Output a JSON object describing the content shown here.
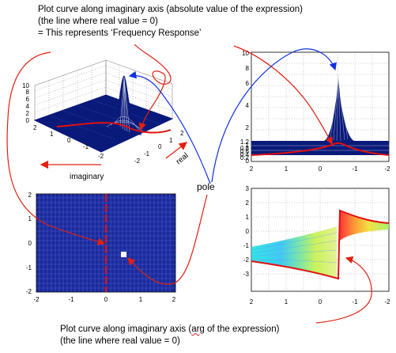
{
  "annotations": {
    "top_line1": "Plot curve along imaginary axis (absolute value of the expression)",
    "top_line2": "(the line where real value = 0)",
    "top_line3": "= This represents ‘Frequency Response’",
    "pole": "pole",
    "bottom_line1_pre": "Plot curve along imaginary axis (",
    "bottom_line1_arg": "arg",
    "bottom_line1_post": " of the expression)",
    "bottom_line2": "(the line where real value = 0)"
  },
  "chart_data": [
    {
      "type": "surface",
      "zticks": [
        "0",
        "2",
        "4",
        "6",
        "8",
        "10"
      ],
      "imag_ticks": [
        "2",
        "1",
        "0",
        "-1",
        "-2"
      ],
      "real_ticks": [
        "-2",
        "-1",
        "0",
        "1",
        "2"
      ],
      "xlabel": "imaginary",
      "ylabel": "real"
    },
    {
      "type": "line",
      "yticks": [
        "0",
        "0.2",
        "0.4",
        "0.6",
        "0.8",
        "1",
        "1.2",
        "2",
        "4",
        "6",
        "8",
        "10"
      ],
      "xticks": [
        "2",
        "1",
        "0",
        "-1",
        "-2"
      ],
      "peak_x": -0.5,
      "peak_y": 7.8
    },
    {
      "type": "heatmap",
      "yticks": [
        "2",
        "1",
        "0",
        "-1",
        "-2"
      ],
      "xticks": [
        "-2",
        "-1",
        "0",
        "1",
        "2"
      ],
      "pole": [
        0.5,
        -0.3
      ]
    },
    {
      "type": "line",
      "yticks": [
        "3",
        "2",
        "1",
        "0",
        "-1",
        "-2",
        "-3"
      ],
      "xticks": [
        "2",
        "1",
        "0",
        "-1",
        "-2"
      ],
      "jump_x": -0.5
    }
  ],
  "colors": {
    "surface": "#0a1a7a",
    "arrow_red": "#e02010",
    "arrow_blue": "#1030e0",
    "curve_red": "#e01010"
  }
}
